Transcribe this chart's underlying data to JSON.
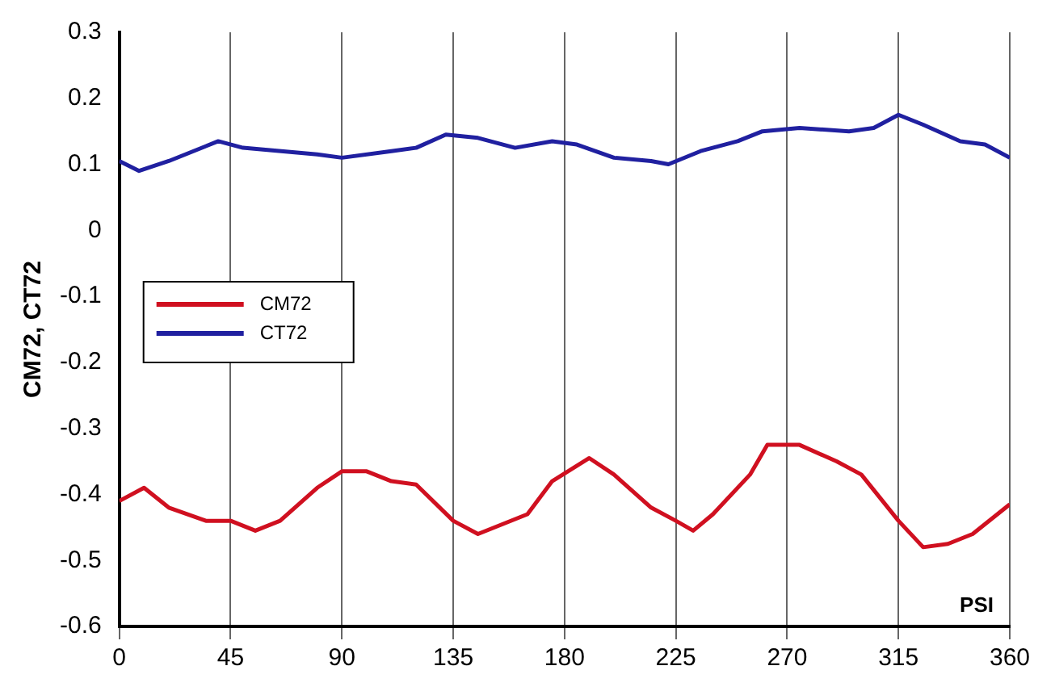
{
  "chart_data": {
    "type": "line",
    "xlabel": "PSI",
    "ylabel": "CM72, CT72",
    "xlim": [
      0,
      360
    ],
    "xticks": [
      0,
      45,
      90,
      135,
      180,
      225,
      270,
      315,
      360
    ],
    "ylim": [
      -0.6,
      0.3
    ],
    "yticks": [
      -0.6,
      -0.5,
      -0.4,
      -0.3,
      -0.2,
      -0.1,
      0,
      0.1,
      0.2,
      0.3
    ],
    "grid": "x",
    "legend": "left",
    "marker": "none",
    "line_style": "solid",
    "x": [
      0,
      10,
      20,
      35,
      45,
      55,
      65,
      80,
      90,
      100,
      110,
      120,
      135,
      145,
      155,
      165,
      175,
      190,
      200,
      215,
      225,
      232,
      240,
      255,
      262,
      275,
      290,
      300,
      315,
      325,
      335,
      345,
      355,
      360
    ],
    "series": [
      {
        "name": "CM72",
        "color": "#d01020",
        "values": [
          -0.41,
          -0.39,
          -0.42,
          -0.44,
          -0.44,
          -0.455,
          -0.44,
          -0.39,
          -0.365,
          -0.365,
          -0.38,
          -0.385,
          -0.44,
          -0.46,
          -0.445,
          -0.43,
          -0.38,
          -0.345,
          -0.37,
          -0.42,
          -0.44,
          -0.455,
          -0.43,
          -0.37,
          -0.325,
          -0.325,
          -0.35,
          -0.37,
          -0.44,
          -0.48,
          -0.475,
          -0.46,
          -0.43,
          -0.415
        ]
      },
      {
        "name": "CT72",
        "color": "#2020a0",
        "x": [
          0,
          8,
          20,
          40,
          50,
          80,
          90,
          110,
          120,
          132,
          145,
          160,
          175,
          185,
          200,
          215,
          222,
          235,
          250,
          260,
          275,
          295,
          305,
          315,
          325,
          340,
          350,
          360
        ],
        "values": [
          0.105,
          0.09,
          0.105,
          0.135,
          0.125,
          0.115,
          0.11,
          0.12,
          0.125,
          0.145,
          0.14,
          0.125,
          0.135,
          0.13,
          0.11,
          0.105,
          0.1,
          0.12,
          0.135,
          0.15,
          0.155,
          0.15,
          0.155,
          0.175,
          0.16,
          0.135,
          0.13,
          0.11
        ]
      }
    ]
  }
}
